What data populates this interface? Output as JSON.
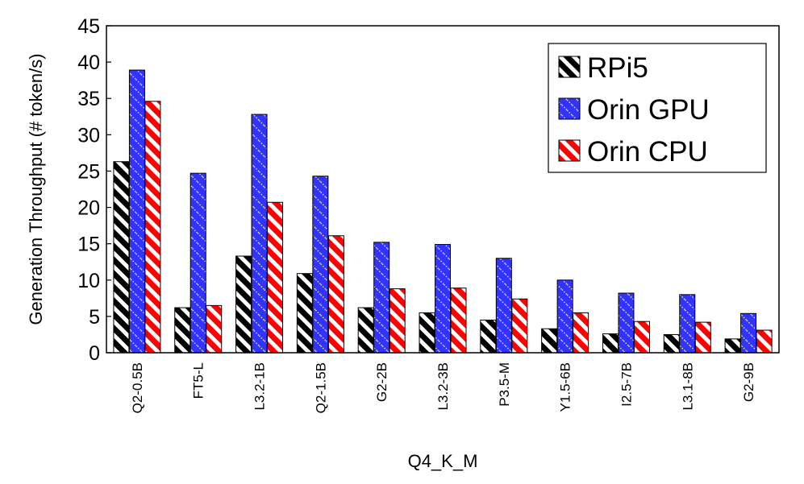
{
  "chart_data": {
    "type": "bar",
    "xlabel": "Q4_K_M",
    "ylabel": "Generation Throughput (# token/s)",
    "ylim": [
      0,
      45
    ],
    "yticks": [
      0,
      5,
      10,
      15,
      20,
      25,
      30,
      35,
      40,
      45
    ],
    "grid": false,
    "legend_position": "top-right",
    "categories": [
      "Q2-0.5B",
      "FT5-L",
      "L3.2-1B",
      "Q2-1.5B",
      "G2-2B",
      "L3.2-3B",
      "P3.5-M",
      "Y1.5-6B",
      "I2.5-7B",
      "L3.1-8B",
      "G2-9B"
    ],
    "series": [
      {
        "name": "RPi5",
        "color": "#000000",
        "pattern": "diagonal-stripes",
        "values": [
          26.3,
          6.2,
          13.3,
          10.9,
          6.2,
          5.5,
          4.5,
          3.3,
          2.6,
          2.5,
          1.9
        ]
      },
      {
        "name": "Orin GPU",
        "color": "#3333ff",
        "pattern": "dotted-diagonal",
        "values": [
          38.9,
          24.7,
          32.8,
          24.3,
          15.2,
          14.9,
          13.0,
          10.0,
          8.2,
          8.0,
          5.4
        ]
      },
      {
        "name": "Orin CPU",
        "color": "#ff0000",
        "pattern": "diagonal-stripes",
        "values": [
          34.6,
          6.5,
          20.7,
          16.1,
          8.8,
          8.9,
          7.4,
          5.5,
          4.3,
          4.2,
          3.1
        ]
      }
    ]
  }
}
